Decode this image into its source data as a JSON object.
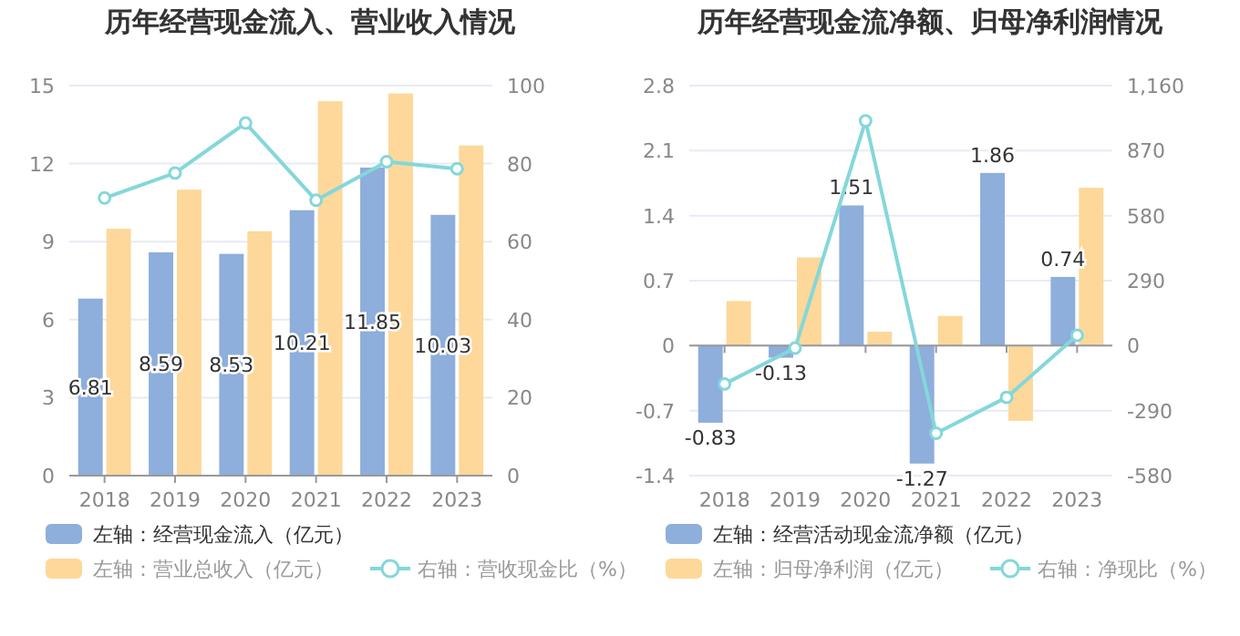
{
  "chart_data": [
    {
      "type": "bar",
      "title": "历年经营现金流入、营业收入情况",
      "categories": [
        "2018",
        "2019",
        "2020",
        "2021",
        "2022",
        "2023"
      ],
      "series": [
        {
          "name": "左轴：经营现金流入（亿元）",
          "color": "#8eaedb",
          "values": [
            6.81,
            8.59,
            8.53,
            10.21,
            11.85,
            10.03
          ],
          "value_labels": [
            "6.81",
            "8.59",
            "8.53",
            "10.21",
            "11.85",
            "10.03"
          ]
        },
        {
          "name": "左轴：营业总收入（亿元）",
          "color": "#fdd89a",
          "values": [
            9.5,
            11.0,
            9.4,
            14.4,
            14.7,
            12.7
          ]
        },
        {
          "name": "右轴：营收现金比（%）",
          "type": "line",
          "axis": "y2",
          "color": "#84d7da",
          "values": [
            71.2,
            77.6,
            90.4,
            70.6,
            80.5,
            78.7
          ]
        }
      ],
      "ylim": [
        0,
        15
      ],
      "yticks": [
        0,
        3,
        6,
        9,
        12,
        15
      ],
      "y2lim": [
        0,
        100
      ],
      "y2ticks": [
        0,
        20,
        40,
        60,
        80,
        100
      ],
      "grid": "y",
      "legend": "bottom",
      "marker": "circle"
    },
    {
      "type": "bar",
      "title": "历年经营现金流净额、归母净利润情况",
      "categories": [
        "2018",
        "2019",
        "2020",
        "2021",
        "2022",
        "2023"
      ],
      "series": [
        {
          "name": "左轴：经营活动现金流净额（亿元）",
          "color": "#8eaedb",
          "values": [
            -0.83,
            -0.13,
            1.51,
            -1.27,
            1.86,
            0.74
          ],
          "value_labels": [
            "-0.83",
            "-0.13",
            "1.51",
            "-1.27",
            "1.86",
            "0.74"
          ]
        },
        {
          "name": "左轴：归母净利润（亿元）",
          "color": "#fdd89a",
          "values": [
            0.48,
            0.95,
            0.15,
            0.32,
            -0.81,
            1.7
          ]
        },
        {
          "name": "右轴：净现比（%）",
          "type": "line",
          "axis": "y2",
          "color": "#84d7da",
          "values": [
            -171,
            -11,
            1003,
            -391,
            -231,
            46
          ]
        }
      ],
      "ylim": [
        -1.4,
        2.8
      ],
      "yticks": [
        -1.4,
        -0.7,
        0,
        0.7,
        1.4,
        2.1,
        2.8
      ],
      "y2lim": [
        -580,
        1160
      ],
      "y2ticks": [
        -580,
        -290,
        0,
        290,
        580,
        870,
        {
          "value": 1160,
          "label": "1,160"
        }
      ],
      "grid": "y",
      "legend": "bottom",
      "marker": "circle"
    }
  ]
}
